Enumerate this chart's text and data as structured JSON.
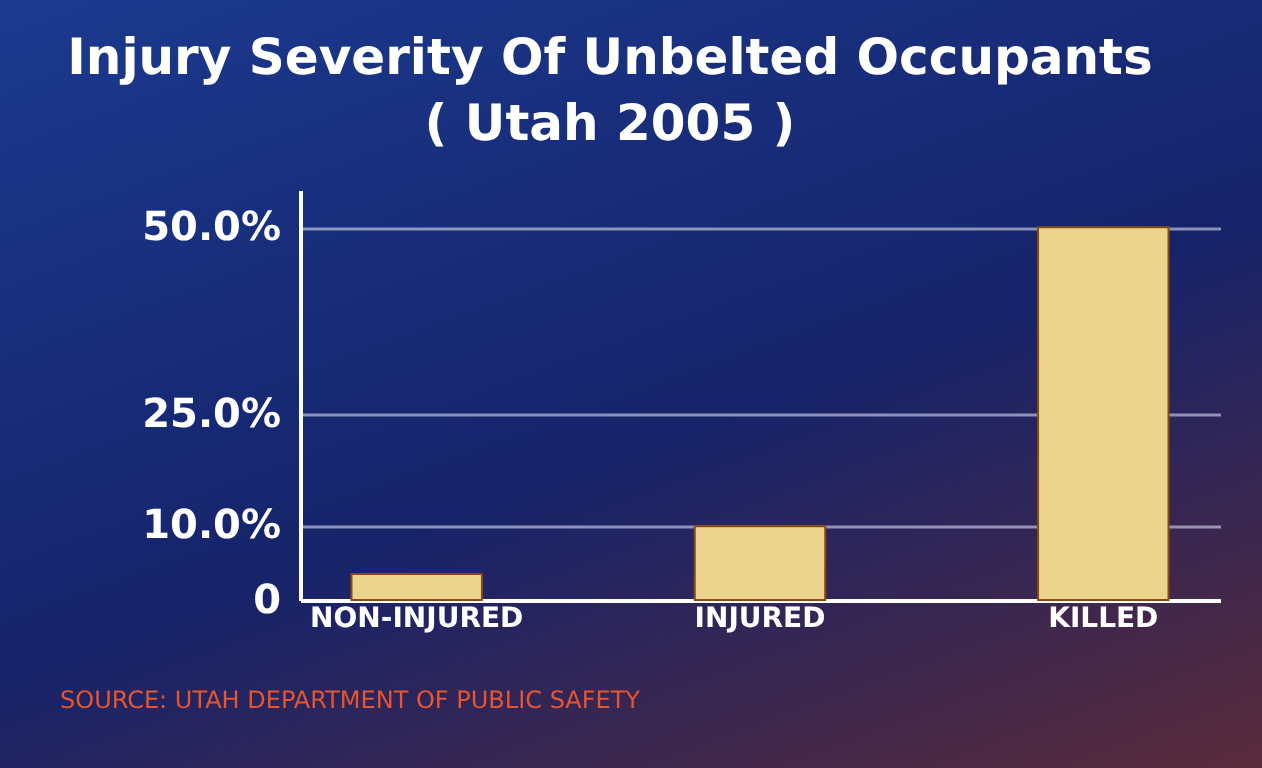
{
  "chart_data": {
    "type": "bar",
    "title": "Injury Severity Of Unbelted Occupants",
    "subtitle": "( Utah 2005 )",
    "categories": [
      "NON-INJURED",
      "INJURED",
      "KILLED"
    ],
    "values": [
      3.5,
      9.9,
      50
    ],
    "color": "#ecd38e",
    "ylim": [
      0,
      55
    ],
    "yticks": [
      {
        "value": 0,
        "label": "0"
      },
      {
        "value": 10,
        "label": "10.0%"
      },
      {
        "value": 25,
        "label": "25.0%"
      },
      {
        "value": 50,
        "label": "50.0%"
      }
    ],
    "grid": "y",
    "annotations": [
      "SOURCE: UTAH DEPARTMENT OF PUBLIC SAFETY"
    ]
  }
}
